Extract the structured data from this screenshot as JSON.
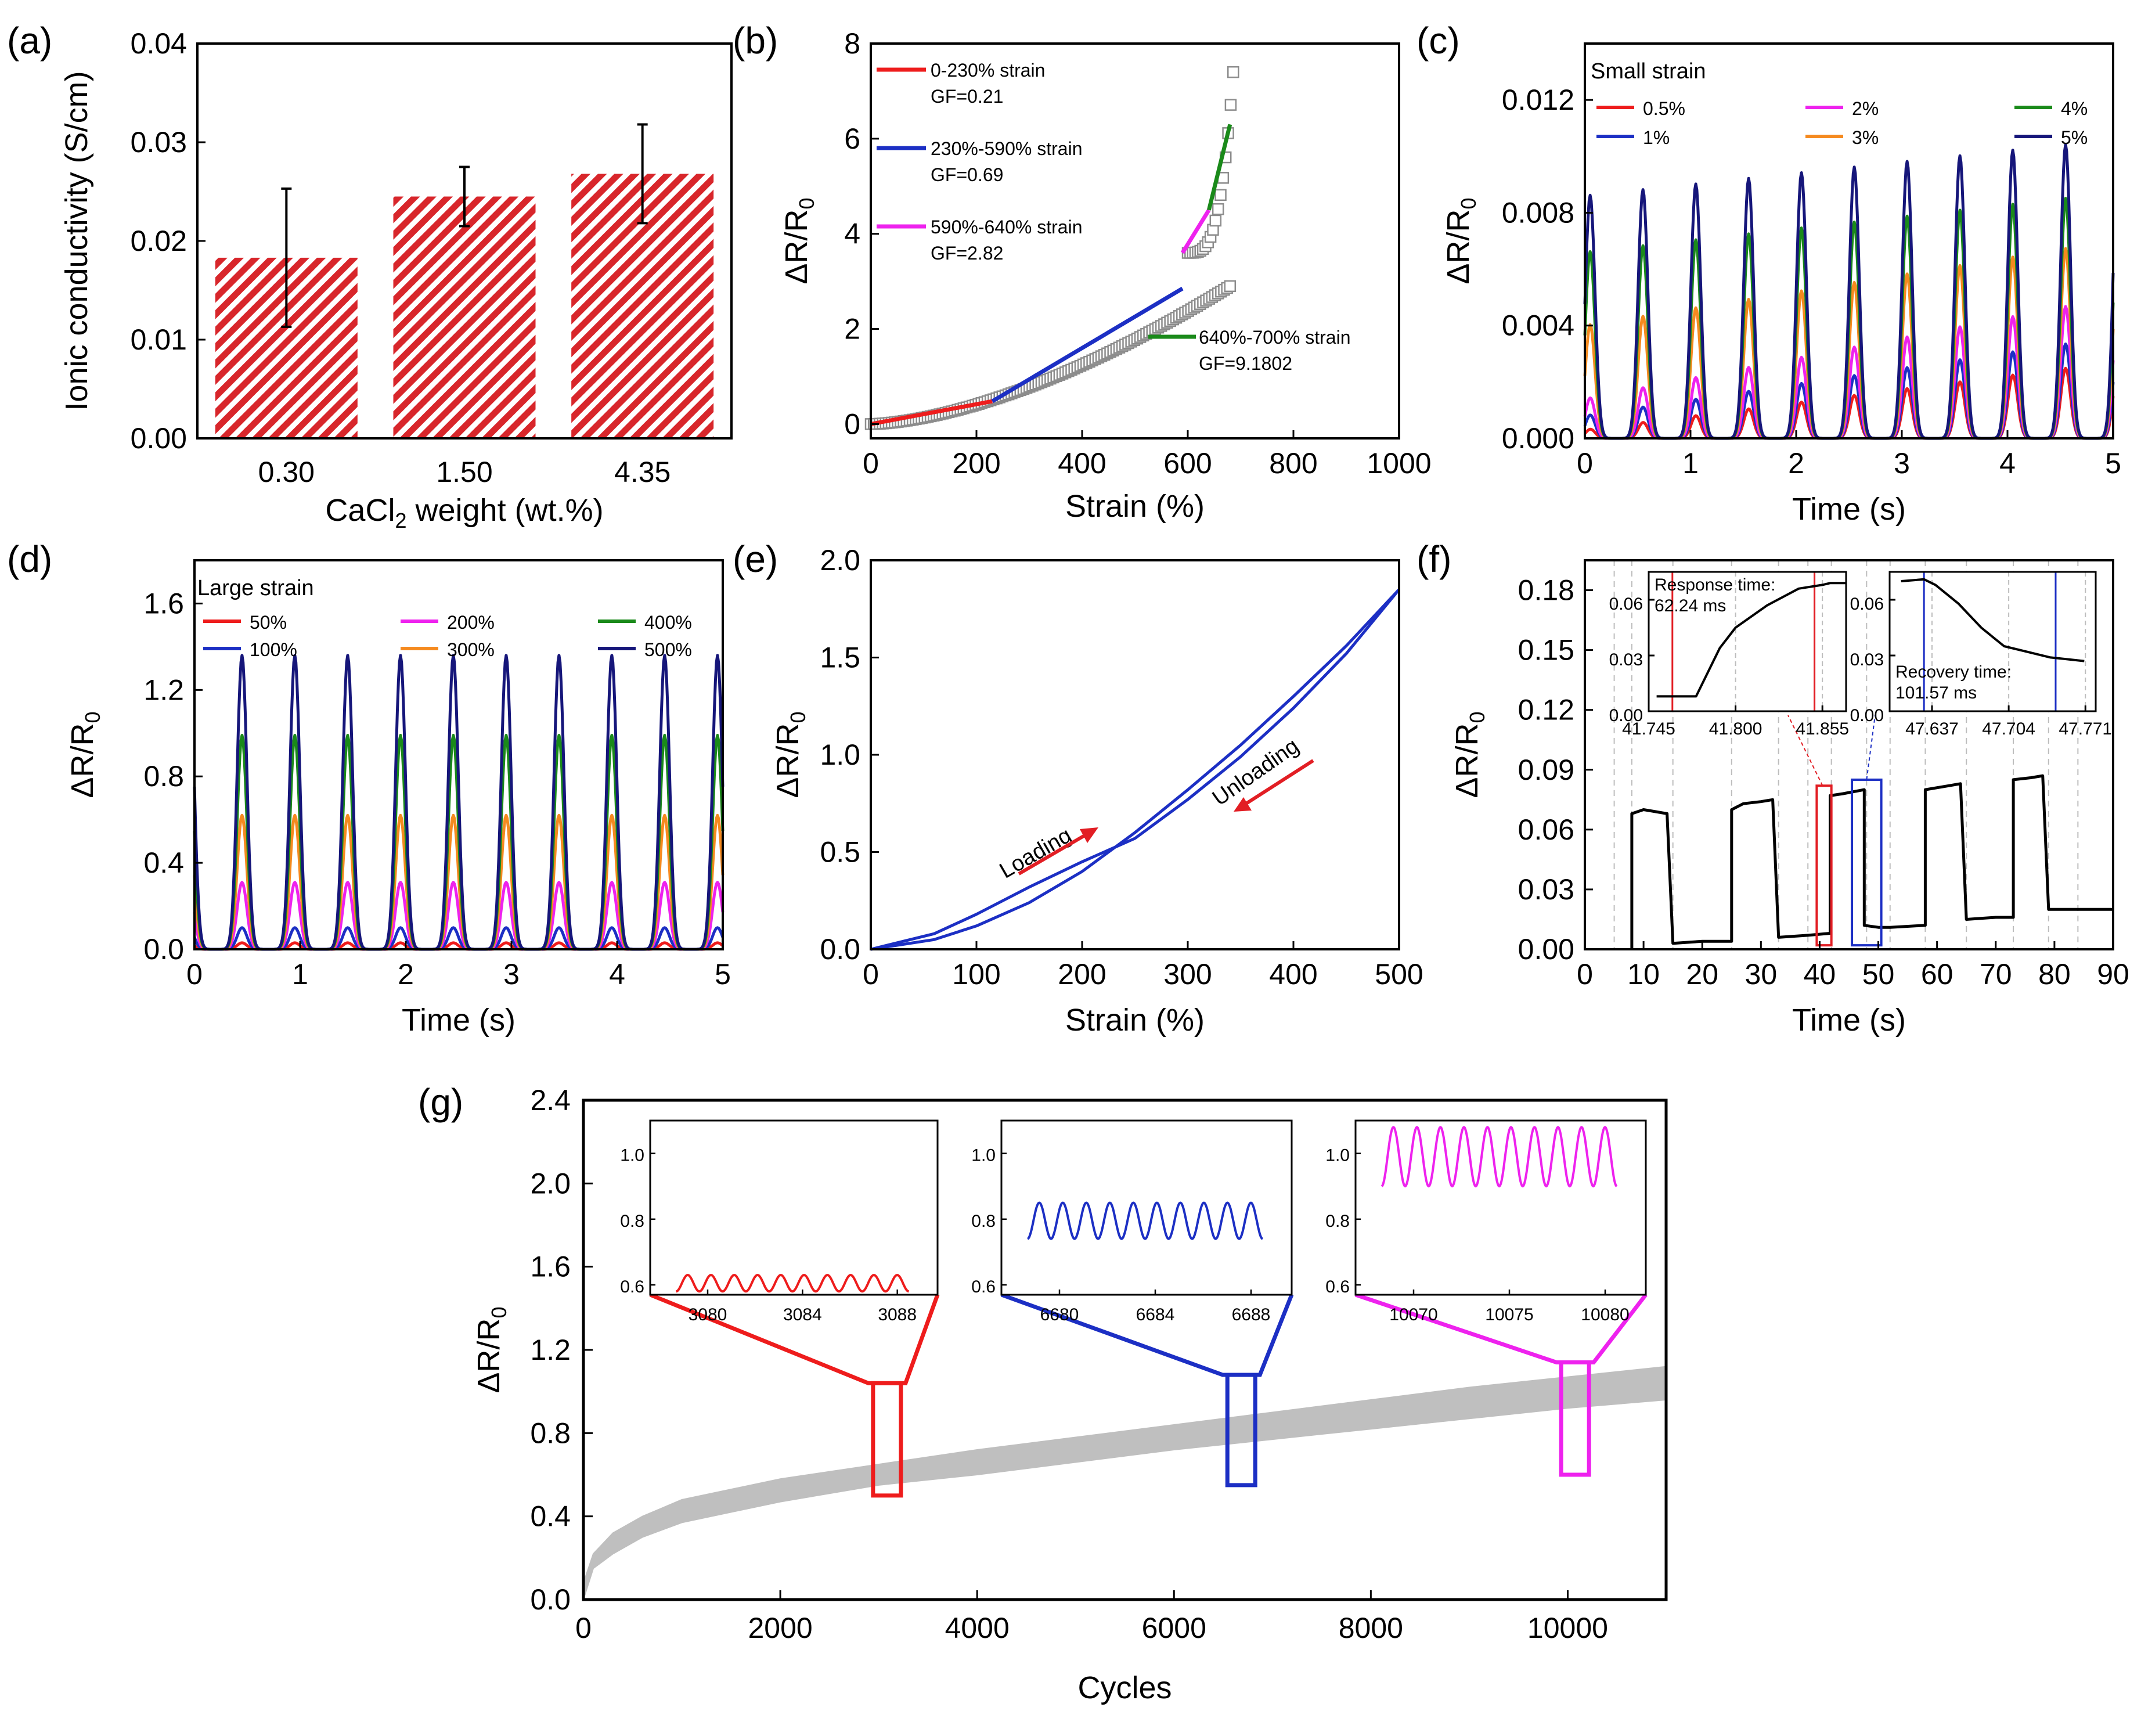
{
  "chart_data": [
    {
      "id": "a",
      "panel_label": "(a)",
      "type": "bar",
      "ylabel": "Ionic conductivity (S/cm)",
      "xlabel_main": "CaCl",
      "xlabel_sub": "2",
      "xlabel_rest": " weight (wt.%)",
      "categories": [
        "0.30",
        "1.50",
        "4.35"
      ],
      "values": [
        0.0183,
        0.0245,
        0.0268
      ],
      "errors": [
        0.007,
        0.003,
        0.005
      ],
      "ylim": [
        0,
        0.04
      ],
      "yticks": [
        "0.00",
        "0.01",
        "0.02",
        "0.03",
        "0.04"
      ],
      "bar_color": "#d8262b"
    },
    {
      "id": "b",
      "panel_label": "(b)",
      "type": "scatter",
      "xlabel": "Strain (%)",
      "ylabel": "ΔR/R0",
      "xlim": [
        0,
        1000
      ],
      "ylim": [
        -0.3,
        8
      ],
      "xticks": [
        "0",
        "200",
        "400",
        "600",
        "800",
        "1000"
      ],
      "yticks": [
        "0",
        "2",
        "4",
        "6",
        "8"
      ],
      "scatter_series": [
        {
          "x": [
            0,
            680
          ],
          "values": [
            0,
            2.9
          ],
          "exponent": 1.6
        },
        {
          "x": [
            600,
            686
          ],
          "values": [
            3.6,
            7.4
          ],
          "exponent": 3.5
        }
      ],
      "fits": [
        {
          "label": "0-230%  strain",
          "gf": "GF=0.21",
          "color": "#ee1c1c",
          "x": [
            0,
            230
          ],
          "y": [
            0,
            0.48
          ]
        },
        {
          "label": "230%-590% strain",
          "gf": " GF=0.69",
          "color": "#1c2fc4",
          "x": [
            230,
            590
          ],
          "y": [
            0.48,
            2.85
          ]
        },
        {
          "label": "590%-640% strain",
          "gf": "GF=2.82",
          "color": "#ee22ee",
          "x": [
            590,
            640
          ],
          "y": [
            3.6,
            4.5
          ]
        },
        {
          "label": "640%-700% strain",
          "gf": "GF=9.1802",
          "color": "#1a8a1a",
          "x": [
            640,
            680
          ],
          "y": [
            4.5,
            6.3
          ]
        }
      ]
    },
    {
      "id": "c",
      "panel_label": "(c)",
      "type": "line",
      "xlabel": "Time (s)",
      "ylabel": "ΔR/R0",
      "legend_title": "Small strain",
      "xlim": [
        0,
        5
      ],
      "ylim": [
        0,
        0.014
      ],
      "xticks": [
        "0",
        "1",
        "2",
        "3",
        "4",
        "5"
      ],
      "yticks": [
        "0.000",
        "0.004",
        "0.008",
        "0.012"
      ],
      "period": 0.5,
      "phase": 0.05,
      "series": [
        {
          "name": "0.5%",
          "color": "#ee1c1c",
          "amp_start": 0.0003,
          "amp_end": 0.0027
        },
        {
          "name": "1%",
          "color": "#1c2fc4",
          "amp_start": 0.0008,
          "amp_end": 0.0036
        },
        {
          "name": "2%",
          "color": "#ee22ee",
          "amp_start": 0.0014,
          "amp_end": 0.005
        },
        {
          "name": "3%",
          "color": "#f58a1f",
          "amp_start": 0.004,
          "amp_end": 0.007
        },
        {
          "name": "4%",
          "color": "#1a8a1a",
          "amp_start": 0.0066,
          "amp_end": 0.0087
        },
        {
          "name": "5%",
          "color": "#16167a",
          "amp_start": 0.0086,
          "amp_end": 0.0106
        }
      ]
    },
    {
      "id": "d",
      "panel_label": "(d)",
      "type": "line",
      "xlabel": "Time (s)",
      "ylabel": "ΔR/R0",
      "legend_title": "Large strain",
      "xlim": [
        0,
        5
      ],
      "ylim": [
        0,
        1.8
      ],
      "xticks": [
        "0",
        "1",
        "2",
        "3",
        "4",
        "5"
      ],
      "yticks": [
        "0.0",
        "0.4",
        "0.8",
        "1.2",
        "1.6"
      ],
      "period": 0.5,
      "phase": -0.05,
      "series": [
        {
          "name": "50%",
          "color": "#ee1c1c",
          "amp_start": 0.03,
          "amp_end": 0.03
        },
        {
          "name": "100%",
          "color": "#1c2fc4",
          "amp_start": 0.1,
          "amp_end": 0.1
        },
        {
          "name": "200%",
          "color": "#ee22ee",
          "amp_start": 0.31,
          "amp_end": 0.31
        },
        {
          "name": "300%",
          "color": "#f58a1f",
          "amp_start": 0.62,
          "amp_end": 0.62
        },
        {
          "name": "400%",
          "color": "#1a8a1a",
          "amp_start": 0.99,
          "amp_end": 0.99
        },
        {
          "name": "500%",
          "color": "#16167a",
          "amp_start": 1.36,
          "amp_end": 1.36
        }
      ]
    },
    {
      "id": "e",
      "panel_label": "(e)",
      "type": "line",
      "xlabel": "Strain (%)",
      "ylabel": "ΔR/R0",
      "xlim": [
        0,
        500
      ],
      "ylim": [
        0,
        2.0
      ],
      "xticks": [
        "0",
        "100",
        "200",
        "300",
        "400",
        "500"
      ],
      "yticks": [
        "0.0",
        "0.5",
        "1.0",
        "1.5",
        "2.0"
      ],
      "loading": {
        "x": [
          0,
          60,
          100,
          150,
          200,
          250,
          300,
          350,
          400,
          450,
          500
        ],
        "y": [
          0,
          0.05,
          0.12,
          0.24,
          0.4,
          0.6,
          0.82,
          1.05,
          1.3,
          1.56,
          1.85
        ]
      },
      "unloading": {
        "x": [
          500,
          450,
          400,
          350,
          300,
          250,
          200,
          150,
          100,
          60,
          0
        ],
        "y": [
          1.85,
          1.52,
          1.24,
          0.99,
          0.77,
          0.57,
          0.45,
          0.32,
          0.18,
          0.08,
          0
        ]
      },
      "annotations": [
        "Loading",
        "Unloading"
      ]
    },
    {
      "id": "f",
      "panel_label": "(f)",
      "type": "line",
      "xlabel": "Time (s)",
      "ylabel": "ΔR/R0",
      "xlim": [
        0,
        90
      ],
      "ylim": [
        0,
        0.195
      ],
      "xticks": [
        "0",
        "10",
        "20",
        "30",
        "40",
        "50",
        "60",
        "70",
        "80",
        "90"
      ],
      "yticks": [
        "0.00",
        "0.03",
        "0.06",
        "0.09",
        "0.12",
        "0.15",
        "0.18"
      ],
      "x": [
        8,
        8,
        10,
        12,
        14,
        15,
        20,
        25,
        25,
        27,
        30,
        32,
        33,
        38,
        41.8,
        41.8,
        44,
        47.6,
        47.6,
        50,
        52,
        58,
        58,
        62,
        64,
        65,
        70,
        73,
        73,
        76,
        78,
        79,
        84,
        90
      ],
      "y": [
        0,
        0.068,
        0.07,
        0.069,
        0.068,
        0.003,
        0.004,
        0.004,
        0.07,
        0.073,
        0.074,
        0.075,
        0.006,
        0.007,
        0.008,
        0.077,
        0.078,
        0.08,
        0.012,
        0.011,
        0.011,
        0.012,
        0.08,
        0.082,
        0.083,
        0.015,
        0.016,
        0.016,
        0.085,
        0.086,
        0.087,
        0.02,
        0.02,
        0.02
      ],
      "inset_response": {
        "xticks": [
          "41.745",
          "41.800",
          "41.855"
        ],
        "yticks": [
          "0.00",
          "0.03",
          "0.06"
        ],
        "xlim": [
          41.745,
          41.87
        ],
        "ylim": [
          0,
          0.075
        ],
        "x": [
          41.75,
          41.775,
          41.79,
          41.8,
          41.82,
          41.84,
          41.855,
          41.86,
          41.87
        ],
        "y": [
          0.008,
          0.008,
          0.034,
          0.045,
          0.057,
          0.066,
          0.068,
          0.069,
          0.069
        ],
        "text1": "Response time:",
        "text2": "62.24 ms"
      },
      "inset_recovery": {
        "xticks": [
          "47.637",
          "47.704",
          "47.771"
        ],
        "yticks": [
          "0.00",
          "0.03",
          "0.06"
        ],
        "xlim": [
          47.6,
          47.78
        ],
        "ylim": [
          0,
          0.075
        ],
        "x": [
          47.61,
          47.63,
          47.64,
          47.66,
          47.68,
          47.7,
          47.72,
          47.74,
          47.77
        ],
        "y": [
          0.07,
          0.071,
          0.068,
          0.058,
          0.045,
          0.035,
          0.032,
          0.029,
          0.027
        ],
        "text1": "Recovery time:",
        "text2": "101.57 ms"
      }
    },
    {
      "id": "g",
      "panel_label": "(g)",
      "type": "area",
      "xlabel": "Cycles",
      "ylabel": "ΔR/R0",
      "xlim": [
        0,
        11000
      ],
      "ylim": [
        0,
        2.4
      ],
      "xticks": [
        "0",
        "2000",
        "4000",
        "6000",
        "8000",
        "10000"
      ],
      "yticks": [
        "0.0",
        "0.4",
        "0.8",
        "1.2",
        "1.6",
        "2.0",
        "2.4"
      ],
      "band": {
        "x": [
          0,
          100,
          300,
          600,
          1000,
          2000,
          3000,
          4000,
          5000,
          6000,
          7000,
          8000,
          9000,
          10000,
          11000
        ],
        "upper": [
          0.08,
          0.22,
          0.32,
          0.4,
          0.48,
          0.58,
          0.65,
          0.72,
          0.78,
          0.84,
          0.9,
          0.96,
          1.02,
          1.07,
          1.12
        ],
        "lower": [
          0.0,
          0.15,
          0.22,
          0.3,
          0.37,
          0.47,
          0.55,
          0.6,
          0.66,
          0.72,
          0.77,
          0.82,
          0.87,
          0.92,
          0.96
        ]
      },
      "zooms": [
        {
          "color": "#ee1c1c",
          "center": 3084,
          "ybox": [
            0.5,
            1.04
          ],
          "xticks": [
            "3080",
            "3084",
            "3088"
          ],
          "yticks": [
            "0.6",
            "0.8",
            "1.0"
          ],
          "base": 0.58,
          "peak": 0.63
        },
        {
          "color": "#1c2fc4",
          "center": 6684,
          "ybox": [
            0.55,
            1.08
          ],
          "xticks": [
            "6680",
            "6684",
            "6688"
          ],
          "yticks": [
            "0.6",
            "0.8",
            "1.0"
          ],
          "base": 0.74,
          "peak": 0.85
        },
        {
          "color": "#ee22ee",
          "center": 10075,
          "ybox": [
            0.6,
            1.14
          ],
          "xticks": [
            "10070",
            "10075",
            "10080"
          ],
          "yticks": [
            "0.6",
            "0.8",
            "1.0"
          ],
          "base": 0.9,
          "peak": 1.08
        }
      ]
    }
  ]
}
